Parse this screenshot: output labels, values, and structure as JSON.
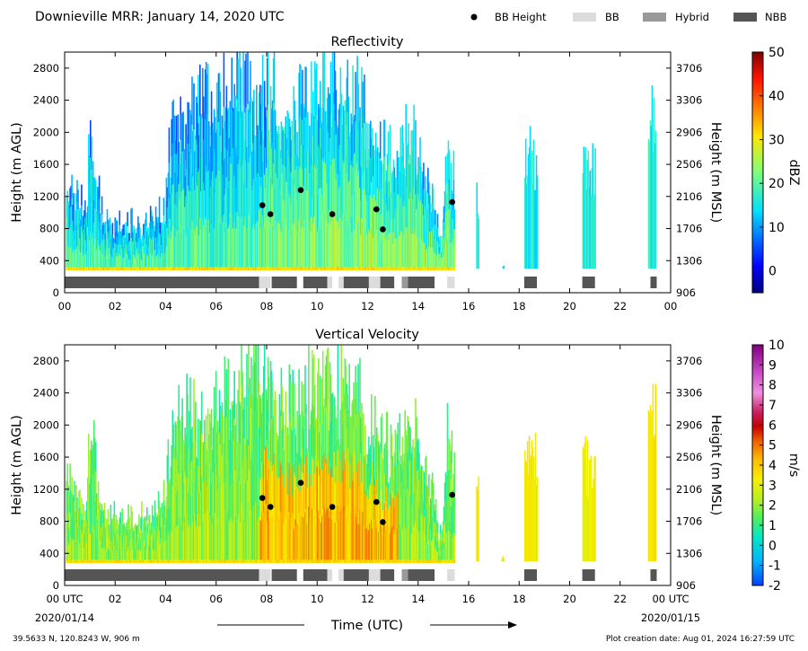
{
  "header": {
    "title": "Downieville MRR:  January 14, 2020 UTC",
    "legend": [
      {
        "label": "BB Height",
        "kind": "dot",
        "color": "#000000"
      },
      {
        "label": "BB",
        "kind": "bar",
        "color": "#dcdcdc"
      },
      {
        "label": "Hybrid",
        "kind": "bar",
        "color": "#999999"
      },
      {
        "label": "NBB",
        "kind": "bar",
        "color": "#555555"
      }
    ]
  },
  "footer": {
    "location": "39.5633 N, 120.8243 W, 906 m",
    "created": "Plot creation date: Aug 01, 2024 16:27:59 UTC",
    "xlabel": "Time (UTC)",
    "start_label": "00 UTC",
    "start_date": "2020/01/14",
    "end_label": "00 UTC",
    "end_date": "2020/01/15"
  },
  "chart_data": [
    {
      "type": "heatmap",
      "title": "Reflectivity",
      "ylabel": "Height (m AGL)",
      "ylabel_right": "Height (m MSL)",
      "xlim": [
        0,
        24
      ],
      "ylim": [
        0,
        3000
      ],
      "xticks": [
        "00",
        "02",
        "04",
        "06",
        "08",
        "10",
        "12",
        "14",
        "16",
        "18",
        "20",
        "22",
        "00"
      ],
      "yticks": [
        0,
        400,
        800,
        1200,
        1600,
        2000,
        2400,
        2800
      ],
      "yticks_right": [
        906,
        1306,
        1706,
        2106,
        2506,
        2906,
        3306,
        3706
      ],
      "colorbar": {
        "label": "dBZ",
        "range": [
          -5,
          50
        ],
        "ticks": [
          0,
          10,
          20,
          30,
          40,
          50
        ],
        "palette": "jet"
      },
      "bb_height": [
        {
          "time": 7.83,
          "height": 1090
        },
        {
          "time": 8.15,
          "height": 980
        },
        {
          "time": 9.35,
          "height": 1280
        },
        {
          "time": 10.6,
          "height": 980
        },
        {
          "time": 12.35,
          "height": 1040
        },
        {
          "time": 12.6,
          "height": 790
        },
        {
          "time": 15.35,
          "height": 1130
        }
      ],
      "bb_class": [
        {
          "class": "NBB",
          "start": 0.0,
          "end": 7.7
        },
        {
          "class": "BB",
          "start": 7.7,
          "end": 8.15
        },
        {
          "class": "NBB",
          "start": 8.2,
          "end": 9.2
        },
        {
          "class": "NBB",
          "start": 9.45,
          "end": 10.4
        },
        {
          "class": "BB",
          "start": 10.4,
          "end": 10.6
        },
        {
          "class": "BB",
          "start": 10.85,
          "end": 11.05
        },
        {
          "class": "NBB",
          "start": 11.05,
          "end": 12.05
        },
        {
          "class": "BB",
          "start": 12.05,
          "end": 12.5
        },
        {
          "class": "NBB",
          "start": 12.5,
          "end": 13.05
        },
        {
          "class": "Hybrid",
          "start": 13.35,
          "end": 13.6
        },
        {
          "class": "NBB",
          "start": 13.6,
          "end": 14.65
        },
        {
          "class": "BB",
          "start": 15.15,
          "end": 15.45
        },
        {
          "class": "NBB",
          "start": 18.2,
          "end": 18.7
        },
        {
          "class": "NBB",
          "start": 20.5,
          "end": 21.0
        },
        {
          "class": "NBB",
          "start": 23.2,
          "end": 23.45
        }
      ]
    },
    {
      "type": "heatmap",
      "title": "Vertical Velocity",
      "ylabel": "Height (m AGL)",
      "ylabel_right": "Height (m MSL)",
      "xlim": [
        0,
        24
      ],
      "ylim": [
        0,
        3000
      ],
      "xticks": [
        "00 UTC",
        "02",
        "04",
        "06",
        "08",
        "10",
        "12",
        "14",
        "16",
        "18",
        "20",
        "22",
        "00 UTC"
      ],
      "yticks": [
        0,
        400,
        800,
        1200,
        1600,
        2000,
        2400,
        2800
      ],
      "yticks_right": [
        906,
        1306,
        1706,
        2106,
        2506,
        2906,
        3306,
        3706
      ],
      "colorbar": {
        "label": "m/s",
        "range": [
          -2,
          10
        ],
        "ticks": [
          -2,
          -1,
          0,
          1,
          2,
          3,
          4,
          5,
          6,
          7,
          8,
          9,
          10
        ],
        "palette": "velocity"
      },
      "bb_height": [
        {
          "time": 7.83,
          "height": 1090
        },
        {
          "time": 8.15,
          "height": 980
        },
        {
          "time": 9.35,
          "height": 1280
        },
        {
          "time": 10.6,
          "height": 980
        },
        {
          "time": 12.35,
          "height": 1040
        },
        {
          "time": 12.6,
          "height": 790
        },
        {
          "time": 15.35,
          "height": 1130
        }
      ],
      "bb_class": [
        {
          "class": "NBB",
          "start": 0.0,
          "end": 7.7
        },
        {
          "class": "BB",
          "start": 7.7,
          "end": 8.15
        },
        {
          "class": "NBB",
          "start": 8.2,
          "end": 9.2
        },
        {
          "class": "NBB",
          "start": 9.45,
          "end": 10.4
        },
        {
          "class": "BB",
          "start": 10.4,
          "end": 10.6
        },
        {
          "class": "BB",
          "start": 10.85,
          "end": 11.05
        },
        {
          "class": "NBB",
          "start": 11.05,
          "end": 12.05
        },
        {
          "class": "BB",
          "start": 12.05,
          "end": 12.5
        },
        {
          "class": "NBB",
          "start": 12.5,
          "end": 13.05
        },
        {
          "class": "Hybrid",
          "start": 13.35,
          "end": 13.6
        },
        {
          "class": "NBB",
          "start": 13.6,
          "end": 14.65
        },
        {
          "class": "BB",
          "start": 15.15,
          "end": 15.45
        },
        {
          "class": "NBB",
          "start": 18.2,
          "end": 18.7
        },
        {
          "class": "NBB",
          "start": 20.5,
          "end": 21.0
        },
        {
          "class": "NBB",
          "start": 23.2,
          "end": 23.45
        }
      ]
    }
  ]
}
